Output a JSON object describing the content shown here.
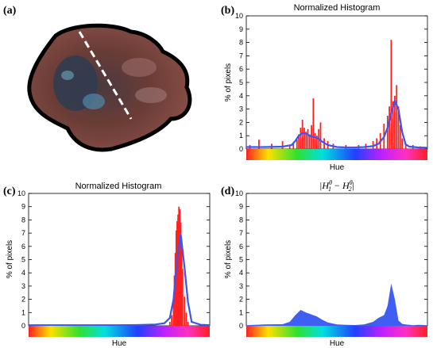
{
  "panels": {
    "a": {
      "letter": "(a)"
    },
    "b": {
      "letter": "(b)"
    },
    "c": {
      "letter": "(c)"
    },
    "d": {
      "letter": "(d)"
    }
  },
  "colors": {
    "hist_red": "#ff2020",
    "curve_blue": "#3b56f0",
    "area_blue": "#3f5ff2"
  },
  "chart_data": [
    {
      "type": "bar",
      "panel": "(b)",
      "title": "Normalized Histogram",
      "xlabel": "Hue",
      "ylabel": "% of pixels",
      "ylim": [
        0,
        10
      ],
      "yticks": [
        0,
        1,
        2,
        3,
        4,
        5,
        6,
        7,
        8,
        9,
        10
      ],
      "xlim": [
        0,
        1
      ],
      "x_axis": "hue color bar",
      "series": [
        {
          "render": "bar",
          "x": [
            0.02,
            0.07,
            0.14,
            0.2,
            0.24,
            0.26,
            0.28,
            0.29,
            0.3,
            0.31,
            0.32,
            0.33,
            0.34,
            0.35,
            0.36,
            0.37,
            0.38,
            0.39,
            0.4,
            0.41,
            0.43,
            0.45,
            0.48,
            0.55,
            0.62,
            0.66,
            0.7,
            0.72,
            0.74,
            0.76,
            0.78,
            0.79,
            0.8,
            0.81,
            0.82,
            0.83,
            0.84,
            0.85,
            0.86,
            0.88,
            0.92,
            0.96
          ],
          "values": [
            0.3,
            0.7,
            0.4,
            0.6,
            0.3,
            0.4,
            0.7,
            1.1,
            1.6,
            2.2,
            1.6,
            1.3,
            1.5,
            1.1,
            1.8,
            3.8,
            1.2,
            1.0,
            1.5,
            2.0,
            0.8,
            0.6,
            0.4,
            0.3,
            0.3,
            0.4,
            0.6,
            0.8,
            1.2,
            1.9,
            2.5,
            3.2,
            8.2,
            3.6,
            4.0,
            4.8,
            3.2,
            1.8,
            0.8,
            0.4,
            0.3,
            0.2
          ]
        },
        {
          "render": "line",
          "x": [
            0.0,
            0.1,
            0.2,
            0.25,
            0.27,
            0.29,
            0.31,
            0.33,
            0.35,
            0.37,
            0.39,
            0.42,
            0.45,
            0.5,
            0.55,
            0.6,
            0.65,
            0.7,
            0.73,
            0.76,
            0.78,
            0.8,
            0.82,
            0.84,
            0.86,
            0.88,
            0.9,
            0.95,
            1.0
          ],
          "values": [
            0.15,
            0.15,
            0.18,
            0.3,
            0.6,
            1.0,
            1.2,
            1.15,
            1.0,
            0.9,
            0.85,
            0.55,
            0.3,
            0.15,
            0.12,
            0.12,
            0.15,
            0.22,
            0.4,
            0.9,
            1.6,
            2.7,
            3.6,
            3.0,
            1.3,
            0.35,
            0.18,
            0.12,
            0.1
          ]
        }
      ]
    },
    {
      "type": "bar",
      "panel": "(c)",
      "title": "Normalized Histogram",
      "xlabel": "Hue",
      "ylabel": "% of pixels",
      "ylim": [
        0,
        10
      ],
      "yticks": [
        0,
        1,
        2,
        3,
        4,
        5,
        6,
        7,
        8,
        9,
        10
      ],
      "xlim": [
        0,
        1
      ],
      "x_axis": "hue color bar",
      "series": [
        {
          "render": "bar",
          "x": [
            0.78,
            0.79,
            0.8,
            0.805,
            0.81,
            0.815,
            0.82,
            0.825,
            0.83,
            0.835,
            0.84,
            0.845,
            0.85,
            0.86,
            0.87,
            0.88
          ],
          "values": [
            0.3,
            0.8,
            2.0,
            3.8,
            5.5,
            7.2,
            7.9,
            8.4,
            9.0,
            8.8,
            7.8,
            6.4,
            4.3,
            2.2,
            1.0,
            0.3
          ]
        },
        {
          "render": "line",
          "x": [
            0.0,
            0.5,
            0.6,
            0.7,
            0.75,
            0.78,
            0.8,
            0.82,
            0.84,
            0.86,
            0.88,
            0.9,
            0.95,
            1.0
          ],
          "values": [
            0.05,
            0.05,
            0.06,
            0.1,
            0.2,
            0.6,
            2.0,
            5.0,
            6.9,
            4.5,
            1.8,
            0.3,
            0.08,
            0.05
          ]
        }
      ]
    },
    {
      "type": "area",
      "panel": "(d)",
      "title_tex": "|H1θ − H2θ|",
      "xlabel": "Hue",
      "ylabel": "% of pixels",
      "ylim": [
        0,
        10
      ],
      "yticks": [
        0,
        1,
        2,
        3,
        4,
        5,
        6,
        7,
        8,
        9,
        10
      ],
      "xlim": [
        0,
        1
      ],
      "x_axis": "hue color bar",
      "series": [
        {
          "render": "area",
          "x": [
            0.0,
            0.1,
            0.2,
            0.24,
            0.27,
            0.3,
            0.33,
            0.36,
            0.39,
            0.42,
            0.45,
            0.5,
            0.55,
            0.6,
            0.65,
            0.7,
            0.73,
            0.76,
            0.78,
            0.8,
            0.82,
            0.84,
            0.86,
            0.88,
            0.92,
            0.95,
            1.0
          ],
          "values": [
            0.05,
            0.1,
            0.12,
            0.3,
            0.8,
            1.2,
            1.0,
            0.85,
            0.7,
            0.45,
            0.25,
            0.1,
            0.08,
            0.06,
            0.1,
            0.3,
            0.6,
            0.8,
            1.5,
            3.2,
            2.0,
            0.4,
            0.15,
            0.1,
            0.05,
            0.08,
            0.05
          ]
        }
      ]
    }
  ]
}
